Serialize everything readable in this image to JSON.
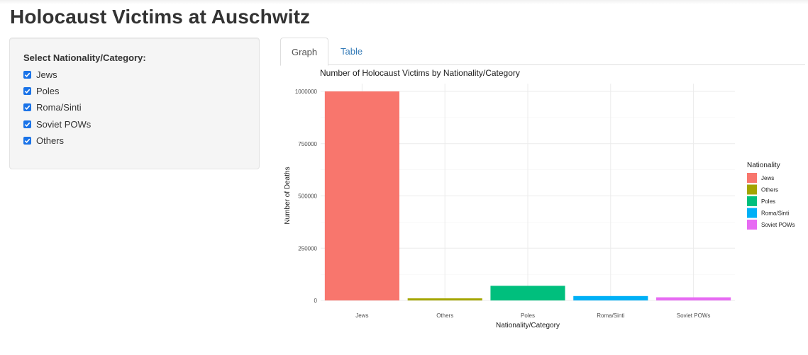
{
  "page": {
    "title": "Holocaust Victims at Auschwitz"
  },
  "sidebar": {
    "label": "Select Nationality/Category:",
    "options": [
      {
        "label": "Jews",
        "checked": true
      },
      {
        "label": "Poles",
        "checked": true
      },
      {
        "label": "Roma/Sinti",
        "checked": true
      },
      {
        "label": "Soviet POWs",
        "checked": true
      },
      {
        "label": "Others",
        "checked": true
      }
    ],
    "checkbox_color": "#1a73e8"
  },
  "tabs": [
    {
      "label": "Graph",
      "active": true
    },
    {
      "label": "Table",
      "active": false
    }
  ],
  "chart_data": {
    "type": "bar",
    "title": "Number of Holocaust Victims by Nationality/Category",
    "xlabel": "Nationality/Category",
    "ylabel": "Number of Deaths",
    "categories": [
      "Jews",
      "Others",
      "Poles",
      "Roma/Sinti",
      "Soviet POWs"
    ],
    "values": [
      1000000,
      10000,
      70000,
      21000,
      15000
    ],
    "colors": [
      "#F8766D",
      "#A3A500",
      "#00BF7D",
      "#00B0F6",
      "#E76BF3"
    ],
    "ylim": [
      0,
      1000000
    ],
    "yticks": [
      0,
      250000,
      500000,
      750000,
      1000000
    ],
    "ytick_labels": [
      "0",
      "250000",
      "500000",
      "750000",
      "1000000"
    ],
    "grid": true,
    "legend": {
      "title": "Nationality",
      "placement": "right",
      "entries": [
        "Jews",
        "Others",
        "Poles",
        "Roma/Sinti",
        "Soviet POWs"
      ]
    }
  }
}
